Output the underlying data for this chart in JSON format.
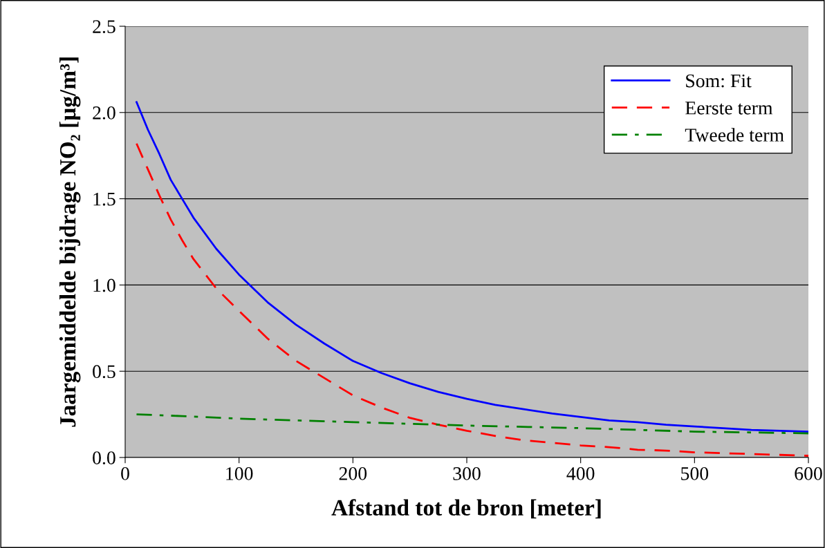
{
  "chart_data": {
    "type": "line",
    "xlabel": "Afstand tot de bron [meter]",
    "ylabel": "Jaargemiddelde bijdrage NO₂ [µg/m³]",
    "xlim": [
      0,
      600
    ],
    "xticks": [
      0,
      100,
      200,
      300,
      400,
      500,
      600
    ],
    "ylim": [
      0,
      2.5
    ],
    "yticks": [
      {
        "value": 0,
        "label": "0.0"
      },
      {
        "value": 0.5,
        "label": "0.5"
      },
      {
        "value": 1.0,
        "label": "1.0"
      },
      {
        "value": 1.5,
        "label": "1.5"
      },
      {
        "value": 2.0,
        "label": "2.0"
      },
      {
        "value": 2.5,
        "label": "2.5"
      }
    ],
    "grid": "y",
    "legend": "top right",
    "series": [
      {
        "name": "Som: Fit",
        "color": "#0000ff",
        "line_style": "solid",
        "x": [
          10,
          20,
          30,
          40,
          50,
          60,
          80,
          100,
          125,
          150,
          175,
          200,
          225,
          250,
          275,
          300,
          325,
          350,
          375,
          400,
          425,
          450,
          475,
          500,
          525,
          550,
          575,
          600
        ],
        "values": [
          2.06,
          1.9,
          1.76,
          1.61,
          1.5,
          1.39,
          1.21,
          1.06,
          0.9,
          0.77,
          0.66,
          0.56,
          0.49,
          0.43,
          0.38,
          0.34,
          0.305,
          0.28,
          0.255,
          0.235,
          0.215,
          0.205,
          0.19,
          0.18,
          0.17,
          0.16,
          0.155,
          0.15
        ]
      },
      {
        "name": "Eerste term",
        "color": "#ff0000",
        "line_style": "dashed",
        "x": [
          10,
          20,
          30,
          40,
          50,
          60,
          80,
          100,
          125,
          150,
          175,
          200,
          225,
          250,
          275,
          300,
          325,
          350,
          375,
          400,
          425,
          450,
          475,
          500,
          525,
          550,
          575,
          600
        ],
        "values": [
          1.82,
          1.67,
          1.52,
          1.38,
          1.26,
          1.15,
          0.98,
          0.85,
          0.69,
          0.56,
          0.46,
          0.36,
          0.29,
          0.23,
          0.19,
          0.155,
          0.125,
          0.1,
          0.085,
          0.07,
          0.06,
          0.045,
          0.04,
          0.03,
          0.025,
          0.02,
          0.015,
          0.01
        ]
      },
      {
        "name": "Tweede term",
        "color": "#008000",
        "line_style": "dashdot",
        "x": [
          10,
          50,
          100,
          200,
          300,
          400,
          500,
          600
        ],
        "values": [
          0.25,
          0.24,
          0.225,
          0.205,
          0.185,
          0.17,
          0.15,
          0.14
        ]
      }
    ]
  }
}
